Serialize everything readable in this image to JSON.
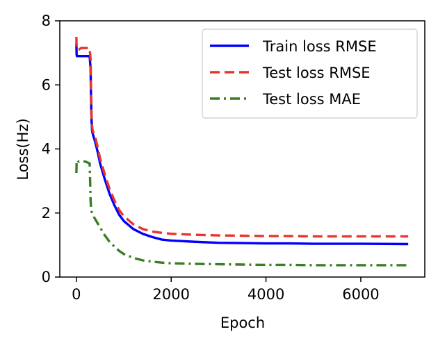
{
  "chart_data": {
    "type": "line",
    "xlabel": "Epoch",
    "ylabel": "Loss(Hz)",
    "xlim": [
      -350,
      7350
    ],
    "ylim": [
      0,
      8
    ],
    "x_ticks": [
      0,
      2000,
      4000,
      6000
    ],
    "y_ticks": [
      0,
      2,
      4,
      6,
      8
    ],
    "grid": false,
    "legend_position": "top-right",
    "series": [
      {
        "name": "Train loss RMSE",
        "color": "#0000ff",
        "style": "solid",
        "x": [
          0,
          5,
          10,
          50,
          100,
          200,
          280,
          300,
          310,
          320,
          330,
          340,
          360,
          400,
          450,
          500,
          600,
          700,
          800,
          900,
          1000,
          1200,
          1400,
          1600,
          1800,
          2000,
          2500,
          3000,
          3500,
          4000,
          4500,
          5000,
          6000,
          7000
        ],
        "y": [
          7.3,
          6.95,
          6.9,
          6.9,
          6.9,
          6.9,
          6.9,
          6.5,
          5.5,
          4.9,
          4.6,
          4.5,
          4.4,
          4.2,
          3.9,
          3.55,
          3.05,
          2.6,
          2.25,
          1.95,
          1.75,
          1.5,
          1.35,
          1.25,
          1.17,
          1.14,
          1.1,
          1.07,
          1.06,
          1.05,
          1.05,
          1.04,
          1.04,
          1.03
        ]
      },
      {
        "name": "Test loss RMSE",
        "color": "#e8362a",
        "style": "dashed",
        "x": [
          0,
          5,
          10,
          50,
          100,
          200,
          280,
          300,
          310,
          320,
          330,
          340,
          360,
          400,
          450,
          500,
          600,
          700,
          800,
          900,
          1000,
          1200,
          1400,
          1600,
          1800,
          2000,
          2500,
          3000,
          3500,
          4000,
          4500,
          5000,
          6000,
          7000
        ],
        "y": [
          7.5,
          7.15,
          7.1,
          7.1,
          7.15,
          7.15,
          7.15,
          6.8,
          5.8,
          5.0,
          4.75,
          4.6,
          4.5,
          4.35,
          4.05,
          3.7,
          3.2,
          2.75,
          2.4,
          2.1,
          1.9,
          1.65,
          1.5,
          1.42,
          1.38,
          1.35,
          1.32,
          1.3,
          1.29,
          1.28,
          1.28,
          1.27,
          1.27,
          1.27
        ]
      },
      {
        "name": "Test loss MAE",
        "color": "#3a7d22",
        "style": "dashdot",
        "x": [
          0,
          5,
          10,
          50,
          100,
          200,
          280,
          290,
          300,
          310,
          320,
          340,
          360,
          400,
          500,
          600,
          700,
          800,
          900,
          1000,
          1200,
          1400,
          1600,
          1800,
          2000,
          2500,
          3000,
          3500,
          4000,
          4500,
          5000,
          6000,
          7000
        ],
        "y": [
          3.25,
          3.6,
          3.65,
          3.6,
          3.62,
          3.6,
          3.55,
          3.0,
          2.4,
          2.15,
          2.05,
          1.95,
          1.9,
          1.8,
          1.55,
          1.3,
          1.1,
          0.95,
          0.82,
          0.72,
          0.6,
          0.52,
          0.48,
          0.45,
          0.43,
          0.41,
          0.4,
          0.39,
          0.38,
          0.38,
          0.37,
          0.37,
          0.37
        ]
      }
    ]
  }
}
